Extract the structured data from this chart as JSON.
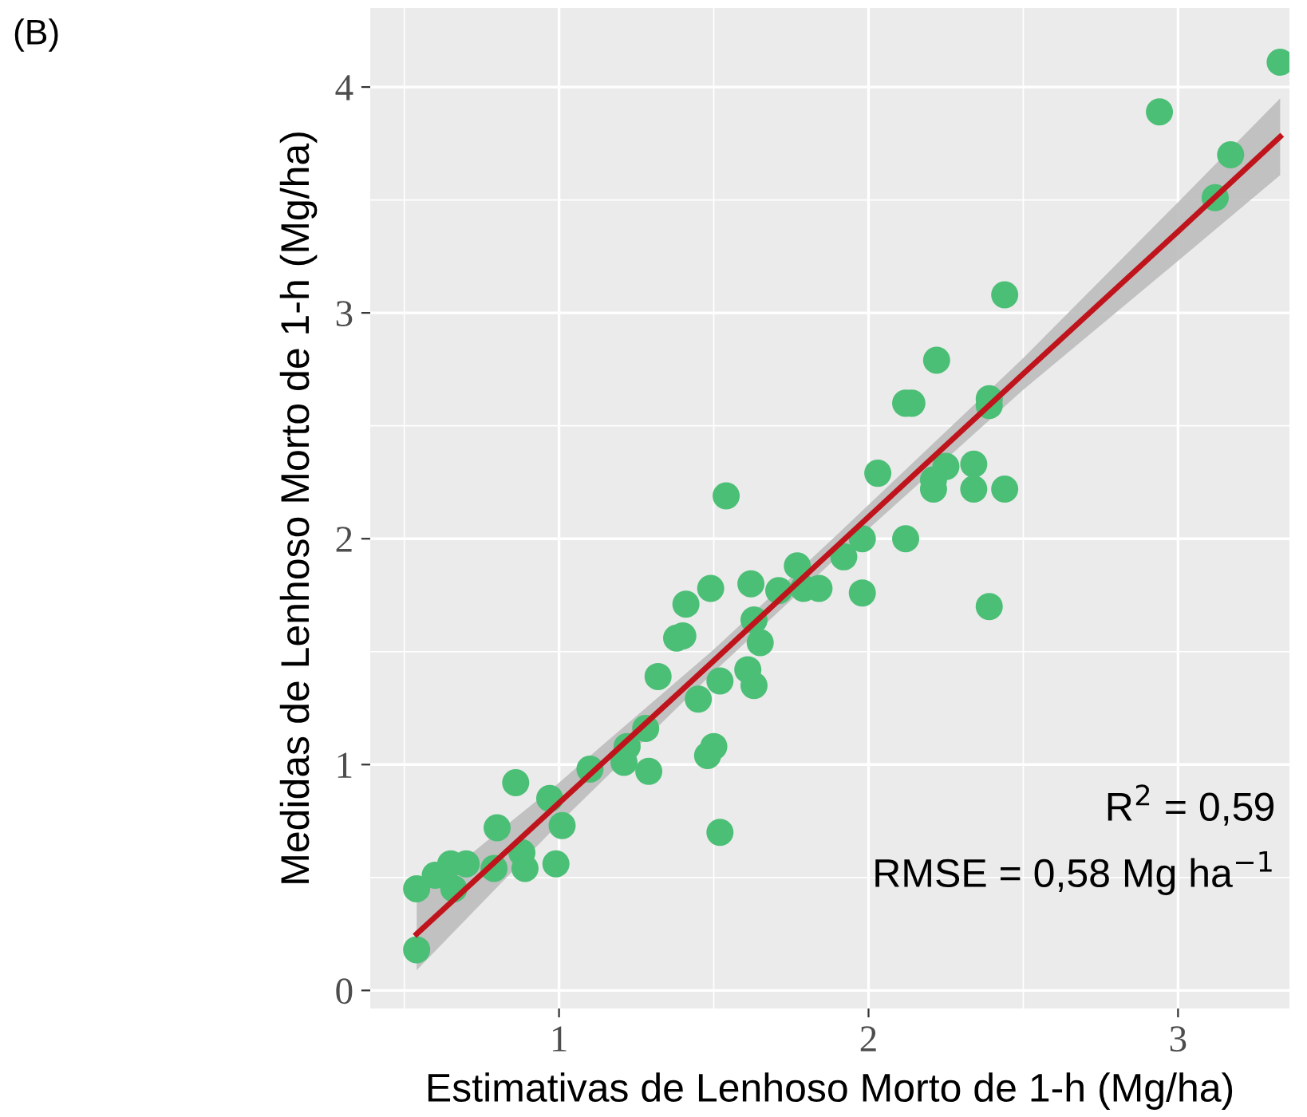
{
  "chart_data": {
    "type": "scatter",
    "xlabel": "Estimativas de Lenhoso Morto de 1-h (Mg/ha)",
    "ylabel": "Medidas de Lenhoso Morto de 1-h (Mg/ha)",
    "annotations": [
      "(B)",
      "R$^{2}$ = 0,59",
      "RMSE = 0,58 Mg ha$^{−1}$"
    ],
    "xlim": [
      0.39,
      3.36
    ],
    "ylim": [
      -0.08,
      4.35
    ],
    "xticks": [
      1,
      2,
      3
    ],
    "yticks": [
      0,
      1,
      2,
      3,
      4
    ],
    "grid": true,
    "series": [
      {
        "color": "#4cbf76",
        "marker": "circle",
        "x": [
          0.54,
          0.54,
          0.6,
          0.65,
          0.66,
          0.7,
          0.79,
          0.8,
          0.86,
          0.89,
          0.88,
          0.99,
          0.97,
          1.01,
          1.1,
          1.21,
          1.22,
          1.28,
          1.29,
          1.32,
          1.38,
          1.4,
          1.41,
          1.45,
          1.48,
          1.5,
          1.49,
          1.52,
          1.52,
          1.54,
          1.62,
          1.61,
          1.63,
          1.63,
          1.65,
          1.71,
          1.77,
          1.79,
          1.84,
          1.92,
          1.98,
          1.98,
          2.03,
          2.12,
          2.12,
          2.14,
          2.22,
          2.21,
          2.21,
          2.25,
          2.34,
          2.34,
          2.39,
          2.39,
          2.39,
          2.44,
          2.44,
          2.94,
          3.12,
          3.17,
          3.33
        ],
        "values": [
          0.18,
          0.45,
          0.51,
          0.56,
          0.45,
          0.56,
          0.54,
          0.72,
          0.92,
          0.54,
          0.61,
          0.56,
          0.85,
          0.73,
          0.98,
          1.01,
          1.08,
          1.16,
          0.97,
          1.39,
          1.56,
          1.57,
          1.71,
          1.29,
          1.04,
          1.08,
          1.78,
          1.37,
          0.7,
          2.19,
          1.8,
          1.42,
          1.35,
          1.64,
          1.54,
          1.77,
          1.88,
          1.78,
          1.78,
          1.92,
          2.0,
          1.76,
          2.29,
          2.0,
          2.6,
          2.6,
          2.79,
          2.26,
          2.22,
          2.32,
          2.33,
          2.22,
          2.62,
          2.59,
          1.7,
          2.22,
          3.08,
          3.89,
          3.51,
          3.7,
          4.11
        ]
      },
      {
        "type": "line",
        "color": "#c0141c",
        "x": [
          0.54,
          1.0,
          1.5,
          1.9,
          2.5,
          3.0,
          3.33
        ],
        "values": [
          0.25,
          0.83,
          1.46,
          1.97,
          2.73,
          3.36,
          3.78
        ],
        "lower": [
          0.09,
          0.74,
          1.41,
          1.92,
          2.66,
          3.23,
          3.61
        ],
        "upper": [
          0.41,
          0.92,
          1.51,
          2.02,
          2.8,
          3.49,
          3.95
        ]
      }
    ]
  }
}
